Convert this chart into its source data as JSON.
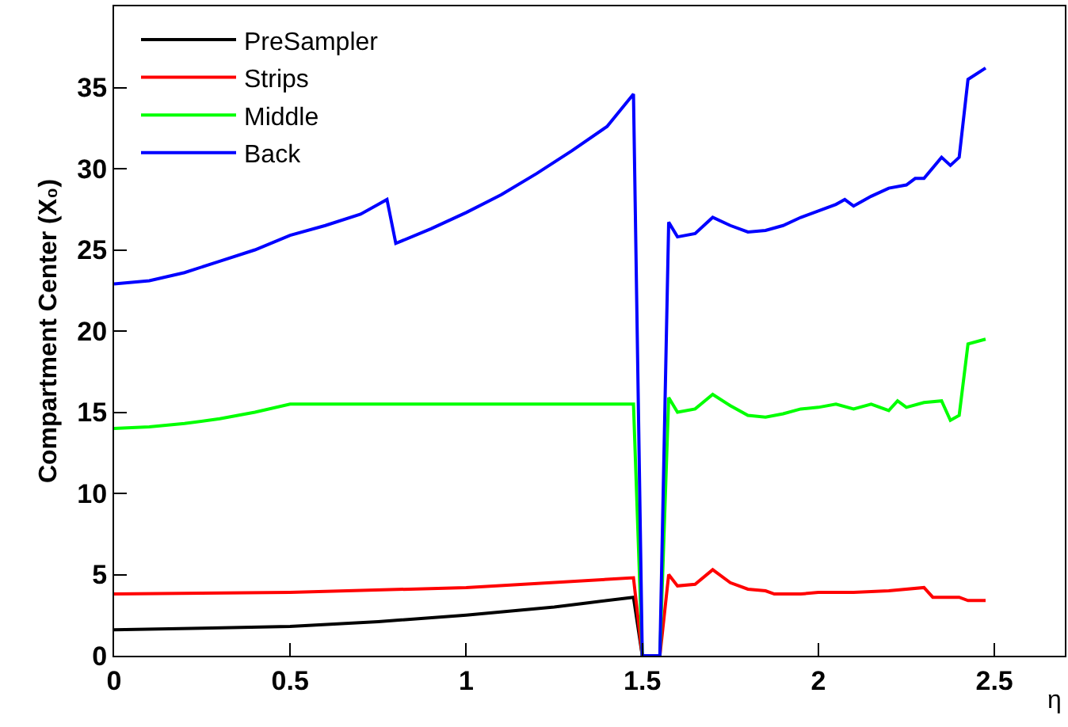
{
  "chart_data": {
    "type": "line",
    "xlabel": "η",
    "ylabel": "Compartment Center (X₀)",
    "xlim": [
      0,
      2.7
    ],
    "ylim": [
      0,
      40
    ],
    "xticks": [
      0,
      0.5,
      1,
      1.5,
      2,
      2.5
    ],
    "yticks": [
      0,
      5,
      10,
      15,
      20,
      25,
      30,
      35
    ],
    "legend": "top left",
    "marker": "none",
    "line_style": "solid",
    "series": [
      {
        "name": "PreSampler",
        "color": "#000000",
        "x": [
          0,
          0.25,
          0.5,
          0.75,
          1.0,
          1.25,
          1.475,
          1.5
        ],
        "values": [
          1.6,
          1.7,
          1.8,
          2.1,
          2.5,
          3.0,
          3.6,
          0
        ]
      },
      {
        "name": "Strips",
        "color": "#ff0000",
        "x": [
          0,
          0.5,
          1.0,
          1.475,
          1.5,
          1.55,
          1.575,
          1.6,
          1.65,
          1.7,
          1.75,
          1.8,
          1.85,
          1.875,
          1.95,
          2.0,
          2.1,
          2.2,
          2.3,
          2.325,
          2.4,
          2.425,
          2.475
        ],
        "values": [
          3.8,
          3.9,
          4.2,
          4.8,
          0,
          0,
          5.0,
          4.3,
          4.4,
          5.3,
          4.5,
          4.1,
          4.0,
          3.8,
          3.8,
          3.9,
          3.9,
          4.0,
          4.2,
          3.6,
          3.6,
          3.4,
          3.4
        ]
      },
      {
        "name": "Middle",
        "color": "#00ff00",
        "x": [
          0,
          0.1,
          0.2,
          0.3,
          0.4,
          0.5,
          1.475,
          1.5,
          1.55,
          1.575,
          1.6,
          1.65,
          1.7,
          1.75,
          1.8,
          1.85,
          1.9,
          1.95,
          2.0,
          2.05,
          2.1,
          2.15,
          2.2,
          2.225,
          2.25,
          2.3,
          2.35,
          2.375,
          2.4,
          2.425,
          2.475
        ],
        "values": [
          14.0,
          14.1,
          14.3,
          14.6,
          15.0,
          15.5,
          15.5,
          0,
          0,
          15.9,
          15.0,
          15.2,
          16.1,
          15.4,
          14.8,
          14.7,
          14.9,
          15.2,
          15.3,
          15.5,
          15.2,
          15.5,
          15.1,
          15.7,
          15.3,
          15.6,
          15.7,
          14.5,
          14.8,
          19.2,
          19.5
        ]
      },
      {
        "name": "Back",
        "color": "#0000ff",
        "x": [
          0,
          0.1,
          0.2,
          0.3,
          0.4,
          0.5,
          0.6,
          0.7,
          0.775,
          0.8,
          0.9,
          1.0,
          1.1,
          1.2,
          1.3,
          1.4,
          1.475,
          1.5,
          1.55,
          1.575,
          1.6,
          1.65,
          1.7,
          1.75,
          1.8,
          1.85,
          1.9,
          1.95,
          2.0,
          2.05,
          2.075,
          2.1,
          2.15,
          2.2,
          2.25,
          2.275,
          2.3,
          2.35,
          2.375,
          2.4,
          2.425,
          2.475
        ],
        "values": [
          22.9,
          23.1,
          23.6,
          24.3,
          25.0,
          25.9,
          26.5,
          27.2,
          28.1,
          25.4,
          26.3,
          27.3,
          28.4,
          29.7,
          31.1,
          32.6,
          34.6,
          0,
          0,
          26.7,
          25.8,
          26.0,
          27.0,
          26.5,
          26.1,
          26.2,
          26.5,
          27.0,
          27.4,
          27.8,
          28.1,
          27.7,
          28.3,
          28.8,
          29.0,
          29.4,
          29.4,
          30.7,
          30.2,
          30.7,
          35.5,
          36.2
        ]
      }
    ]
  }
}
